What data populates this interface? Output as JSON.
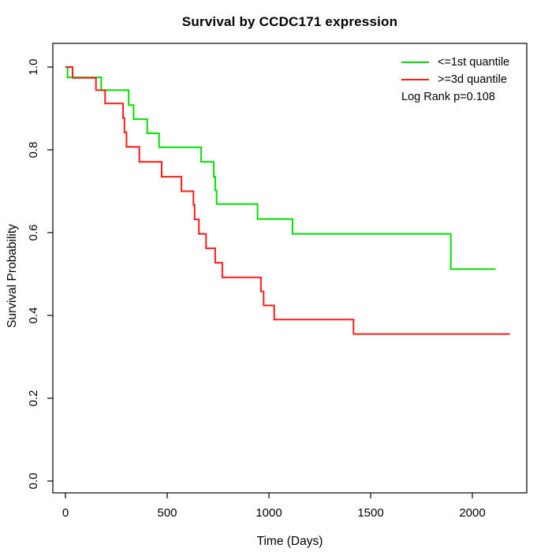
{
  "chart_data": {
    "type": "line",
    "variant": "kaplan-meier-step-curves",
    "title": "Survival by CCDC171 expression",
    "xlabel": "Time (Days)",
    "ylabel": "Survival Probability",
    "xticks": [
      0,
      500,
      1000,
      1500,
      2000
    ],
    "yticks": [
      0.0,
      0.2,
      0.4,
      0.6,
      0.8,
      1.0
    ],
    "xlim": [
      -90,
      2270
    ],
    "ylim": [
      -0.04,
      1.06
    ],
    "grid": false,
    "legend_position": "top-right",
    "annotation": "Log Rank p=0.108",
    "axis_color": "#000000",
    "series": [
      {
        "name": "<=1st quantile",
        "color": "#00E000",
        "end_time": 2114,
        "steps": [
          [
            0,
            1.0
          ],
          [
            10,
            0.975
          ],
          [
            176,
            0.944
          ],
          [
            311,
            0.908
          ],
          [
            335,
            0.874
          ],
          [
            402,
            0.84
          ],
          [
            460,
            0.806
          ],
          [
            667,
            0.771
          ],
          [
            729,
            0.735
          ],
          [
            736,
            0.702
          ],
          [
            743,
            0.669
          ],
          [
            944,
            0.633
          ],
          [
            1116,
            0.597
          ],
          [
            1894,
            0.512
          ]
        ]
      },
      {
        "name": ">=3d quantile",
        "color": "#FF1A1A",
        "end_time": 2185,
        "steps": [
          [
            0,
            1.0
          ],
          [
            35,
            0.974
          ],
          [
            150,
            0.944
          ],
          [
            195,
            0.912
          ],
          [
            283,
            0.877
          ],
          [
            290,
            0.842
          ],
          [
            300,
            0.807
          ],
          [
            363,
            0.771
          ],
          [
            473,
            0.735
          ],
          [
            570,
            0.7
          ],
          [
            629,
            0.667
          ],
          [
            635,
            0.632
          ],
          [
            656,
            0.597
          ],
          [
            691,
            0.562
          ],
          [
            736,
            0.527
          ],
          [
            771,
            0.492
          ],
          [
            961,
            0.458
          ],
          [
            974,
            0.424
          ],
          [
            1026,
            0.39
          ],
          [
            1416,
            0.355
          ]
        ]
      }
    ]
  }
}
